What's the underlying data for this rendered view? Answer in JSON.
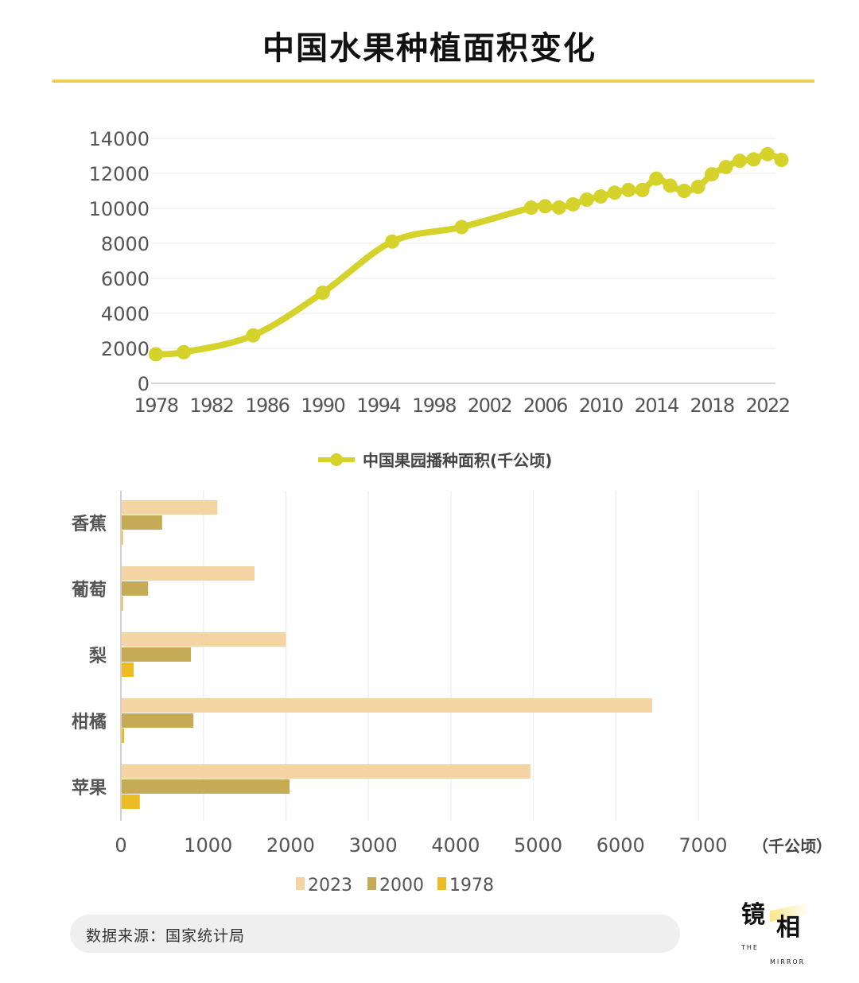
{
  "title": "中国水果种植面积变化",
  "source": "数据来源：国家统计局",
  "logo": {
    "text_cn": "镜相",
    "text_en_top": "THE",
    "text_en_bottom": "MIRROR"
  },
  "colors": {
    "line": "#d6d22c",
    "bar_2023": "#f3d4a2",
    "bar_2000": "#c5ab56",
    "bar_1978": "#edbb24",
    "title_rule": "#f1cd55"
  },
  "chart_data": [
    {
      "type": "line",
      "x": [
        1978,
        1980,
        1985,
        1990,
        1995,
        2000,
        2005,
        2006,
        2007,
        2008,
        2009,
        2010,
        2011,
        2012,
        2013,
        2014,
        2015,
        2016,
        2017,
        2018,
        2019,
        2020,
        2021,
        2022,
        2023
      ],
      "series": [
        {
          "name": "中国果园播种面积(千公顷)",
          "values": [
            1660,
            1780,
            2740,
            5180,
            8100,
            8930,
            10040,
            10120,
            10050,
            10230,
            10500,
            10680,
            10900,
            11050,
            11050,
            11700,
            11300,
            11000,
            11230,
            11950,
            12360,
            12720,
            12800,
            13100,
            12770
          ]
        }
      ],
      "ylim": [
        0,
        14000
      ],
      "yticks": [
        "0",
        "2000",
        "4000",
        "6000",
        "8000",
        "10000",
        "12000",
        "14000"
      ],
      "xticks": [
        "1978",
        "1982",
        "1986",
        "1990",
        "1994",
        "1998",
        "2002",
        "2006",
        "2010",
        "2014",
        "2018",
        "2022"
      ],
      "grid": true,
      "legend": "bottom",
      "marker": "circle"
    },
    {
      "type": "bar",
      "orientation": "horizontal",
      "categories": [
        "香蕉",
        "葡萄",
        "梨",
        "柑橘",
        "苹果"
      ],
      "series": [
        {
          "name": "2023",
          "values": [
            1160,
            1610,
            1990,
            6430,
            4955
          ]
        },
        {
          "name": "2000",
          "values": [
            490,
            320,
            840,
            870,
            2035
          ]
        },
        {
          "name": "1978",
          "values": [
            10,
            8,
            145,
            30,
            220
          ]
        }
      ],
      "xlim": [
        0,
        7000
      ],
      "xticks": [
        "0",
        "1000",
        "2000",
        "3000",
        "4000",
        "5000",
        "6000",
        "7000"
      ],
      "unit": "（千公顷）",
      "grid": true,
      "legend": "bottom"
    }
  ]
}
